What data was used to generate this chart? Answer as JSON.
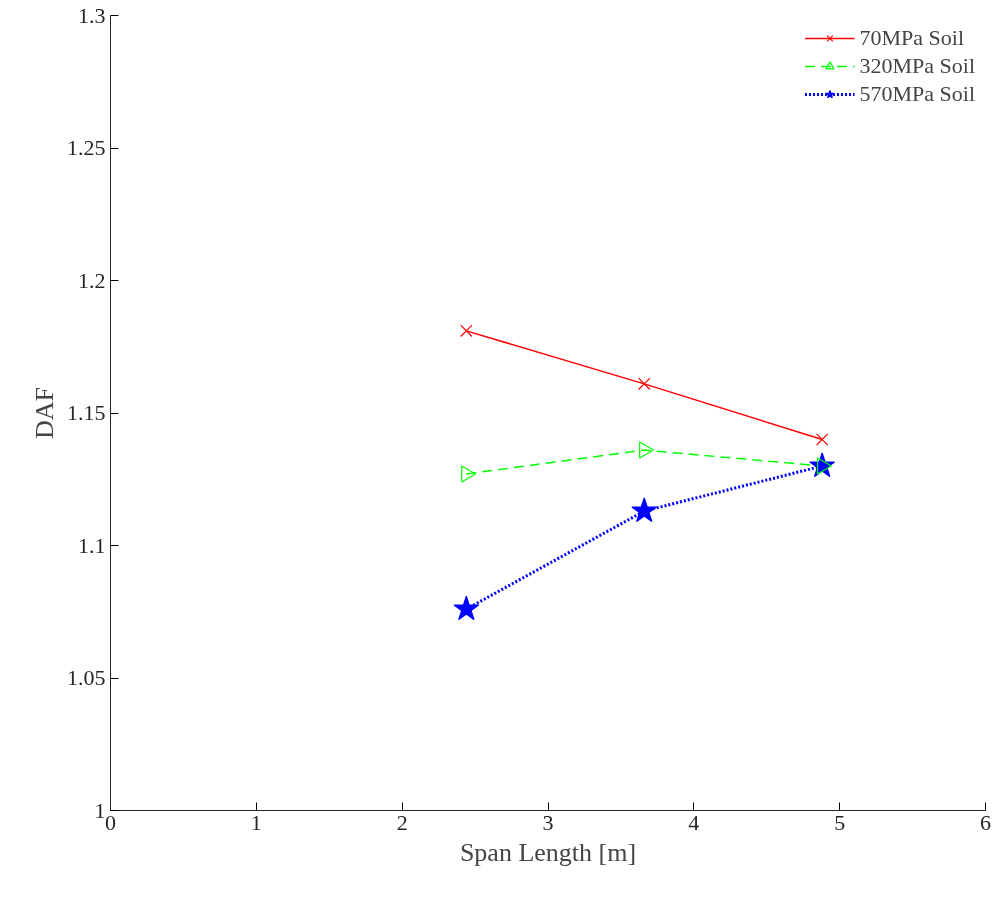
{
  "chart_data": {
    "type": "line",
    "xlabel": "Span Length [m]",
    "ylabel": "DAF",
    "x": [
      2.44,
      3.66,
      4.88
    ],
    "series": [
      {
        "name": "70MPa Soil",
        "color": "#ff0000",
        "values": [
          1.181,
          1.161,
          1.14
        ],
        "marker": "cross",
        "line_style": "solid"
      },
      {
        "name": "320MPa Soil",
        "color": "#00ff00",
        "values": [
          1.127,
          1.136,
          1.13
        ],
        "marker": "triangle",
        "line_style": "dashed"
      },
      {
        "name": "570MPa Soil",
        "color": "#0000ff",
        "values": [
          1.076,
          1.113,
          1.13
        ],
        "marker": "star",
        "line_style": "dotted"
      }
    ],
    "xlim": [
      0,
      6
    ],
    "xticks": [
      0,
      1,
      2,
      3,
      4,
      5,
      6
    ],
    "ylim": [
      1,
      1.3
    ],
    "yticks": [
      1,
      1.05,
      1.1,
      1.15,
      1.2,
      1.25,
      1.3
    ],
    "grid": false,
    "legend": "top right"
  }
}
